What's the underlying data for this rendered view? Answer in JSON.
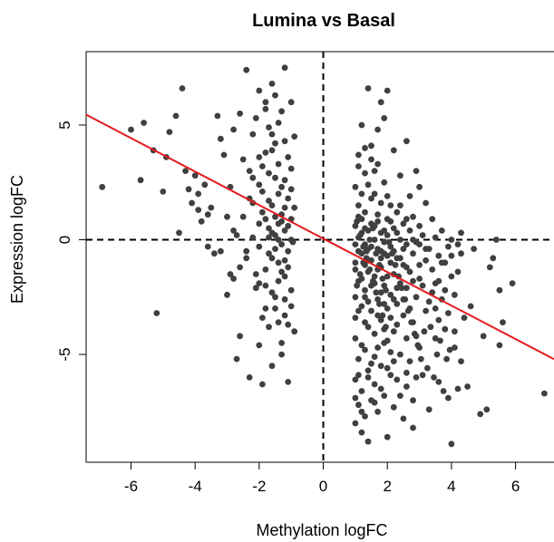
{
  "chart_data": {
    "type": "scatter",
    "title": "Lumina vs Basal",
    "xlabel": "Methylation logFC",
    "ylabel": "Expression logFC",
    "xlim": [
      -7.4,
      7.2
    ],
    "ylim": [
      -9.7,
      8.2
    ],
    "x_ticks": [
      -6,
      -4,
      -2,
      0,
      2,
      4,
      6
    ],
    "y_ticks": [
      -5,
      0,
      5
    ],
    "grid": false,
    "reference_lines": {
      "vertical_x": 0,
      "horizontal_y": 0,
      "style": "dashed"
    },
    "fit_line": {
      "color": "#e41a1c",
      "slope": -0.73,
      "intercept": 0.05
    },
    "point_color": "#404040",
    "points": [
      [
        -6.9,
        2.3
      ],
      [
        -6.0,
        4.8
      ],
      [
        -5.7,
        2.6
      ],
      [
        -5.6,
        5.1
      ],
      [
        -5.3,
        3.9
      ],
      [
        -5.2,
        -3.2
      ],
      [
        -5.0,
        2.1
      ],
      [
        -4.8,
        4.7
      ],
      [
        -4.6,
        5.4
      ],
      [
        -4.4,
        6.6
      ],
      [
        -4.3,
        3.0
      ],
      [
        -4.2,
        2.2
      ],
      [
        -4.1,
        1.6
      ],
      [
        -4.0,
        2.8
      ],
      [
        -3.9,
        2.0
      ],
      [
        -3.8,
        0.8
      ],
      [
        -3.7,
        2.4
      ],
      [
        -3.6,
        -0.3
      ],
      [
        -3.5,
        1.4
      ],
      [
        -3.4,
        -0.6
      ],
      [
        -3.3,
        5.4
      ],
      [
        -3.2,
        4.4
      ],
      [
        -3.1,
        3.7
      ],
      [
        -3.0,
        -2.4
      ],
      [
        -3.0,
        1.0
      ],
      [
        -2.9,
        2.3
      ],
      [
        -2.8,
        -1.7
      ],
      [
        -2.8,
        0.4
      ],
      [
        -2.7,
        -5.2
      ],
      [
        -2.6,
        -1.2
      ],
      [
        -2.5,
        3.5
      ],
      [
        -2.4,
        7.4
      ],
      [
        -2.4,
        -0.8
      ],
      [
        -2.3,
        1.8
      ],
      [
        -2.3,
        -6.0
      ],
      [
        -2.2,
        4.6
      ],
      [
        -2.2,
        0.1
      ],
      [
        -2.1,
        -2.1
      ],
      [
        -2.1,
        5.3
      ],
      [
        -2.0,
        2.4
      ],
      [
        -2.0,
        -0.3
      ],
      [
        -1.9,
        -6.3
      ],
      [
        -1.9,
        1.2
      ],
      [
        -1.8,
        3.8
      ],
      [
        -1.8,
        -1.3
      ],
      [
        -1.8,
        6.0
      ],
      [
        -1.7,
        0.5
      ],
      [
        -1.7,
        2.9
      ],
      [
        -1.7,
        -3.8
      ],
      [
        -1.6,
        6.8
      ],
      [
        -1.6,
        1.5
      ],
      [
        -1.6,
        -0.8
      ],
      [
        -1.5,
        4.2
      ],
      [
        -1.5,
        0.2
      ],
      [
        -1.5,
        -2.5
      ],
      [
        -1.5,
        6.3
      ],
      [
        -1.4,
        2.0
      ],
      [
        -1.4,
        -1.0
      ],
      [
        -1.4,
        3.3
      ],
      [
        -1.4,
        0.7
      ],
      [
        -1.3,
        -4.5
      ],
      [
        -1.3,
        1.1
      ],
      [
        -1.3,
        5.6
      ],
      [
        -1.3,
        -0.2
      ],
      [
        -1.2,
        2.6
      ],
      [
        -1.2,
        0.4
      ],
      [
        -1.2,
        -1.6
      ],
      [
        -1.2,
        7.5
      ],
      [
        -1.1,
        1.8
      ],
      [
        -1.1,
        -0.5
      ],
      [
        -1.1,
        3.6
      ],
      [
        -1.1,
        -6.2
      ],
      [
        -1.0,
        0.9
      ],
      [
        -1.0,
        -2.9
      ],
      [
        -1.0,
        2.2
      ],
      [
        -1.0,
        6.0
      ],
      [
        -0.95,
        -0.1
      ],
      [
        -0.9,
        -4.0
      ],
      [
        -0.9,
        1.4
      ],
      [
        -0.9,
        4.5
      ],
      [
        -1.6,
        -5.5
      ],
      [
        -1.9,
        -3.4
      ],
      [
        -2.6,
        -4.2
      ],
      [
        -1.3,
        -5.0
      ],
      [
        -1.7,
        4.9
      ],
      [
        -2.3,
        3.0
      ],
      [
        -2.0,
        6.5
      ],
      [
        -1.5,
        2.7
      ],
      [
        -1.2,
        -3.3
      ],
      [
        -1.8,
        0.9
      ],
      [
        1.0,
        -8.0
      ],
      [
        1.0,
        -6.1
      ],
      [
        1.0,
        -4.3
      ],
      [
        1.0,
        -2.5
      ],
      [
        1.0,
        -1.0
      ],
      [
        1.0,
        0.6
      ],
      [
        1.0,
        2.3
      ],
      [
        1.0,
        -3.4
      ],
      [
        1.1,
        -7.2
      ],
      [
        1.1,
        -5.2
      ],
      [
        1.1,
        -1.8
      ],
      [
        1.1,
        0.1
      ],
      [
        1.1,
        1.5
      ],
      [
        1.1,
        3.7
      ],
      [
        1.2,
        -8.4
      ],
      [
        1.2,
        -6.6
      ],
      [
        1.2,
        -2.9
      ],
      [
        1.2,
        -0.6
      ],
      [
        1.2,
        0.9
      ],
      [
        1.2,
        5.0
      ],
      [
        1.3,
        -7.7
      ],
      [
        1.3,
        -4.8
      ],
      [
        1.3,
        -2.2
      ],
      [
        1.3,
        -0.2
      ],
      [
        1.3,
        1.2
      ],
      [
        1.3,
        2.9
      ],
      [
        1.4,
        -8.8
      ],
      [
        1.4,
        -5.7
      ],
      [
        1.4,
        -3.8
      ],
      [
        1.4,
        -1.4
      ],
      [
        1.4,
        0.4
      ],
      [
        1.4,
        6.6
      ],
      [
        1.5,
        -7.0
      ],
      [
        1.5,
        -3.1
      ],
      [
        1.5,
        -0.9
      ],
      [
        1.5,
        0.7
      ],
      [
        1.5,
        4.1
      ],
      [
        1.6,
        -6.3
      ],
      [
        1.6,
        -4.1
      ],
      [
        1.6,
        -1.6
      ],
      [
        1.6,
        0.0
      ],
      [
        1.6,
        2.0
      ],
      [
        1.7,
        -7.5
      ],
      [
        1.7,
        -2.6
      ],
      [
        1.7,
        -0.4
      ],
      [
        1.7,
        1.1
      ],
      [
        1.7,
        3.3
      ],
      [
        1.8,
        -5.5
      ],
      [
        1.8,
        -3.5
      ],
      [
        1.8,
        -1.2
      ],
      [
        1.8,
        0.3
      ],
      [
        1.8,
        6.0
      ],
      [
        1.9,
        -6.8
      ],
      [
        1.9,
        -4.5
      ],
      [
        1.9,
        -2.0
      ],
      [
        1.9,
        -0.1
      ],
      [
        1.9,
        2.5
      ],
      [
        2.0,
        -8.6
      ],
      [
        2.0,
        -3.0
      ],
      [
        2.0,
        -0.7
      ],
      [
        2.0,
        0.9
      ],
      [
        2.0,
        6.5
      ],
      [
        2.1,
        -5.9
      ],
      [
        2.1,
        -2.4
      ],
      [
        2.1,
        -0.3
      ],
      [
        2.1,
        1.5
      ],
      [
        2.2,
        -7.3
      ],
      [
        2.2,
        -4.0
      ],
      [
        2.2,
        -1.5
      ],
      [
        2.2,
        0.5
      ],
      [
        2.2,
        3.9
      ],
      [
        2.3,
        -6.1
      ],
      [
        2.3,
        -2.8
      ],
      [
        2.3,
        -0.8
      ],
      [
        2.3,
        1.2
      ],
      [
        2.4,
        -5.0
      ],
      [
        2.4,
        -1.9
      ],
      [
        2.4,
        0.0
      ],
      [
        2.4,
        2.8
      ],
      [
        2.5,
        -7.8
      ],
      [
        2.5,
        -3.3
      ],
      [
        2.5,
        -1.1
      ],
      [
        2.5,
        0.7
      ],
      [
        2.6,
        -6.4
      ],
      [
        2.6,
        -4.3
      ],
      [
        2.6,
        -2.1
      ],
      [
        2.6,
        -0.2
      ],
      [
        2.6,
        4.3
      ],
      [
        2.7,
        -5.3
      ],
      [
        2.7,
        -1.4
      ],
      [
        2.7,
        0.4
      ],
      [
        2.7,
        1.9
      ],
      [
        2.8,
        -8.2
      ],
      [
        2.8,
        -3.6
      ],
      [
        2.8,
        -0.6
      ],
      [
        2.8,
        1.0
      ],
      [
        2.9,
        -6.0
      ],
      [
        2.9,
        -2.5
      ],
      [
        2.9,
        -0.1
      ],
      [
        2.9,
        3.0
      ],
      [
        3.0,
        -4.7
      ],
      [
        3.0,
        -1.7
      ],
      [
        3.0,
        0.6
      ],
      [
        3.0,
        2.3
      ],
      [
        3.1,
        -5.9
      ],
      [
        3.1,
        -2.0
      ],
      [
        3.1,
        0.2
      ],
      [
        3.2,
        -3.1
      ],
      [
        3.2,
        -0.9
      ],
      [
        3.2,
        1.6
      ],
      [
        3.3,
        -7.4
      ],
      [
        3.3,
        -2.7
      ],
      [
        3.3,
        -0.4
      ],
      [
        3.4,
        -1.3
      ],
      [
        3.4,
        0.9
      ],
      [
        3.5,
        -4.3
      ],
      [
        3.5,
        -1.9
      ],
      [
        3.5,
        0.1
      ],
      [
        3.6,
        -6.2
      ],
      [
        3.6,
        -3.5
      ],
      [
        3.6,
        -0.7
      ],
      [
        3.7,
        -1.0
      ],
      [
        3.7,
        0.4
      ],
      [
        3.8,
        -3.9
      ],
      [
        3.8,
        -2.2
      ],
      [
        3.9,
        -6.9
      ],
      [
        3.9,
        -0.3
      ],
      [
        4.0,
        -8.9
      ],
      [
        4.0,
        -1.6
      ],
      [
        4.0,
        0.0
      ],
      [
        4.1,
        -4.0
      ],
      [
        4.1,
        -2.4
      ],
      [
        4.2,
        -6.5
      ],
      [
        4.2,
        -1.4
      ],
      [
        4.3,
        -0.6
      ],
      [
        4.3,
        0.3
      ],
      [
        4.4,
        -3.4
      ],
      [
        4.5,
        -6.4
      ],
      [
        4.6,
        -2.9
      ],
      [
        4.7,
        -0.4
      ],
      [
        4.9,
        -7.6
      ],
      [
        5.0,
        -4.2
      ],
      [
        5.1,
        -7.4
      ],
      [
        5.2,
        -1.2
      ],
      [
        5.3,
        -0.8
      ],
      [
        5.4,
        0.0
      ],
      [
        5.5,
        -4.6
      ],
      [
        5.5,
        -2.2
      ],
      [
        5.6,
        -3.6
      ],
      [
        5.9,
        -1.9
      ],
      [
        6.9,
        -6.7
      ],
      [
        1.1,
        -5.9
      ],
      [
        1.3,
        -3.6
      ],
      [
        1.5,
        -5.4
      ],
      [
        1.7,
        -4.7
      ],
      [
        1.9,
        -3.9
      ],
      [
        2.1,
        -4.9
      ],
      [
        2.3,
        -3.7
      ],
      [
        1.2,
        -4.6
      ],
      [
        1.4,
        -2.7
      ],
      [
        1.6,
        -5.1
      ],
      [
        1.8,
        -2.3
      ],
      [
        2.0,
        -4.4
      ],
      [
        2.2,
        -2.6
      ],
      [
        1.0,
        -1.3
      ],
      [
        1.2,
        -1.7
      ],
      [
        1.4,
        -0.9
      ],
      [
        1.6,
        -1.9
      ],
      [
        1.8,
        -0.8
      ],
      [
        2.0,
        -1.6
      ],
      [
        1.1,
        -0.5
      ],
      [
        1.3,
        -1.1
      ],
      [
        1.5,
        -0.3
      ],
      [
        1.7,
        -1.3
      ],
      [
        1.9,
        -0.6
      ],
      [
        2.1,
        -1.0
      ],
      [
        1.0,
        -0.2
      ],
      [
        1.2,
        0.3
      ],
      [
        1.4,
        -0.4
      ],
      [
        1.6,
        0.6
      ],
      [
        1.8,
        -0.5
      ],
      [
        2.0,
        0.2
      ],
      [
        2.2,
        -0.5
      ],
      [
        2.4,
        -0.8
      ],
      [
        2.6,
        -1.2
      ],
      [
        2.8,
        -1.8
      ],
      [
        3.0,
        -1.1
      ],
      [
        1.1,
        1.0
      ],
      [
        1.3,
        0.5
      ],
      [
        1.5,
        1.8
      ],
      [
        1.7,
        0.8
      ],
      [
        1.9,
        0.4
      ],
      [
        2.1,
        0.8
      ],
      [
        2.3,
        0.3
      ],
      [
        2.5,
        -0.4
      ],
      [
        1.2,
        2.0
      ],
      [
        1.4,
        2.4
      ],
      [
        1.6,
        3.0
      ],
      [
        1.8,
        1.6
      ],
      [
        2.0,
        1.9
      ],
      [
        1.3,
        4.0
      ],
      [
        1.5,
        3.5
      ],
      [
        1.7,
        4.8
      ],
      [
        1.9,
        5.3
      ],
      [
        1.1,
        3.2
      ],
      [
        2.4,
        1.5
      ],
      [
        2.6,
        0.9
      ],
      [
        2.8,
        0.0
      ],
      [
        3.0,
        -0.2
      ],
      [
        3.2,
        -0.4
      ],
      [
        1.0,
        -6.9
      ],
      [
        1.2,
        -7.5
      ],
      [
        1.4,
        -6.0
      ],
      [
        1.6,
        -7.1
      ],
      [
        1.8,
        -6.5
      ],
      [
        2.0,
        -5.6
      ],
      [
        2.2,
        -5.3
      ],
      [
        2.4,
        -6.8
      ],
      [
        2.6,
        -5.8
      ],
      [
        2.8,
        -7.0
      ],
      [
        1.1,
        -3.1
      ],
      [
        1.3,
        -2.5
      ],
      [
        1.5,
        -2.0
      ],
      [
        1.7,
        -3.3
      ],
      [
        1.9,
        -2.8
      ],
      [
        2.1,
        -3.4
      ],
      [
        2.3,
        -2.1
      ],
      [
        2.5,
        -2.6
      ],
      [
        2.7,
        -3.0
      ],
      [
        2.9,
        -4.2
      ],
      [
        -1.4,
        -1.8
      ],
      [
        -1.6,
        3.9
      ],
      [
        -1.2,
        1.4
      ],
      [
        -1.8,
        -2.0
      ],
      [
        -2.0,
        -4.6
      ],
      [
        -1.5,
        -3.0
      ],
      [
        -1.1,
        -1.2
      ],
      [
        -1.3,
        2.3
      ],
      [
        -1.7,
        -0.6
      ],
      [
        -1.9,
        3.2
      ],
      [
        -1.0,
        0.0
      ],
      [
        -1.2,
        -0.9
      ],
      [
        -1.4,
        0.0
      ],
      [
        -1.6,
        0.3
      ],
      [
        -1.1,
        0.6
      ],
      [
        -1.3,
        0.8
      ],
      [
        -1.5,
        1.0
      ],
      [
        -1.7,
        1.7
      ],
      [
        -1.9,
        2.1
      ],
      [
        -2.1,
        -1.5
      ],
      [
        -1.0,
        3.1
      ],
      [
        -1.2,
        4.3
      ],
      [
        -1.4,
        5.1
      ],
      [
        -1.6,
        4.6
      ],
      [
        -1.8,
        5.7
      ],
      [
        -2.0,
        3.6
      ],
      [
        -2.2,
        1.6
      ],
      [
        -2.4,
        -0.5
      ],
      [
        -2.5,
        1.0
      ],
      [
        -2.7,
        0.2
      ],
      [
        -1.0,
        -2.2
      ],
      [
        -1.2,
        -2.6
      ],
      [
        -1.4,
        -3.6
      ],
      [
        -1.6,
        -2.3
      ],
      [
        -1.8,
        -3.0
      ],
      [
        -2.0,
        -1.9
      ],
      [
        -1.1,
        -3.7
      ],
      [
        -1.3,
        -1.4
      ],
      [
        -1.5,
        -0.4
      ],
      [
        -1.7,
        0.1
      ],
      [
        -2.9,
        -1.5
      ],
      [
        -3.2,
        -0.5
      ],
      [
        -3.6,
        1.1
      ],
      [
        -4.5,
        0.3
      ],
      [
        -4.9,
        3.6
      ],
      [
        -3.9,
        1.3
      ],
      [
        -2.8,
        4.8
      ],
      [
        -2.6,
        5.5
      ],
      [
        -2.2,
        2.7
      ],
      [
        -2.0,
        0.7
      ],
      [
        1.05,
        -2.0
      ],
      [
        1.15,
        -1.5
      ],
      [
        1.25,
        -1.0
      ],
      [
        1.35,
        -0.5
      ],
      [
        1.45,
        0.0
      ],
      [
        1.55,
        0.5
      ],
      [
        1.65,
        -0.6
      ],
      [
        1.75,
        -1.1
      ],
      [
        1.85,
        -1.7
      ],
      [
        1.95,
        -2.2
      ],
      [
        1.05,
        0.8
      ],
      [
        1.15,
        0.2
      ],
      [
        1.25,
        -0.3
      ],
      [
        1.35,
        -0.8
      ],
      [
        1.45,
        -1.3
      ],
      [
        1.55,
        -1.8
      ],
      [
        1.65,
        -2.3
      ],
      [
        1.75,
        -2.8
      ],
      [
        1.85,
        -3.3
      ],
      [
        1.95,
        -3.8
      ],
      [
        2.05,
        -0.1
      ],
      [
        2.15,
        -0.6
      ],
      [
        2.25,
        -1.1
      ],
      [
        2.35,
        -1.6
      ],
      [
        2.45,
        -2.1
      ],
      [
        2.55,
        -2.6
      ],
      [
        2.65,
        -3.1
      ],
      [
        2.75,
        -3.6
      ],
      [
        2.85,
        -4.1
      ],
      [
        2.95,
        -4.6
      ],
      [
        3.4,
        -2.3
      ],
      [
        3.6,
        -1.8
      ],
      [
        3.8,
        -1.0
      ],
      [
        4.0,
        -0.7
      ],
      [
        4.2,
        -0.2
      ],
      [
        3.5,
        -3.0
      ],
      [
        3.7,
        -2.6
      ],
      [
        3.9,
        -3.2
      ],
      [
        4.1,
        -4.7
      ],
      [
        4.3,
        -5.3
      ],
      [
        3.05,
        -5.2
      ],
      [
        3.15,
        -4.0
      ],
      [
        3.25,
        -5.6
      ],
      [
        3.35,
        -3.8
      ],
      [
        3.45,
        -6.0
      ],
      [
        3.55,
        -5.0
      ],
      [
        3.65,
        -4.4
      ],
      [
        3.75,
        -6.6
      ],
      [
        3.85,
        -5.2
      ],
      [
        3.95,
        -4.8
      ]
    ]
  }
}
